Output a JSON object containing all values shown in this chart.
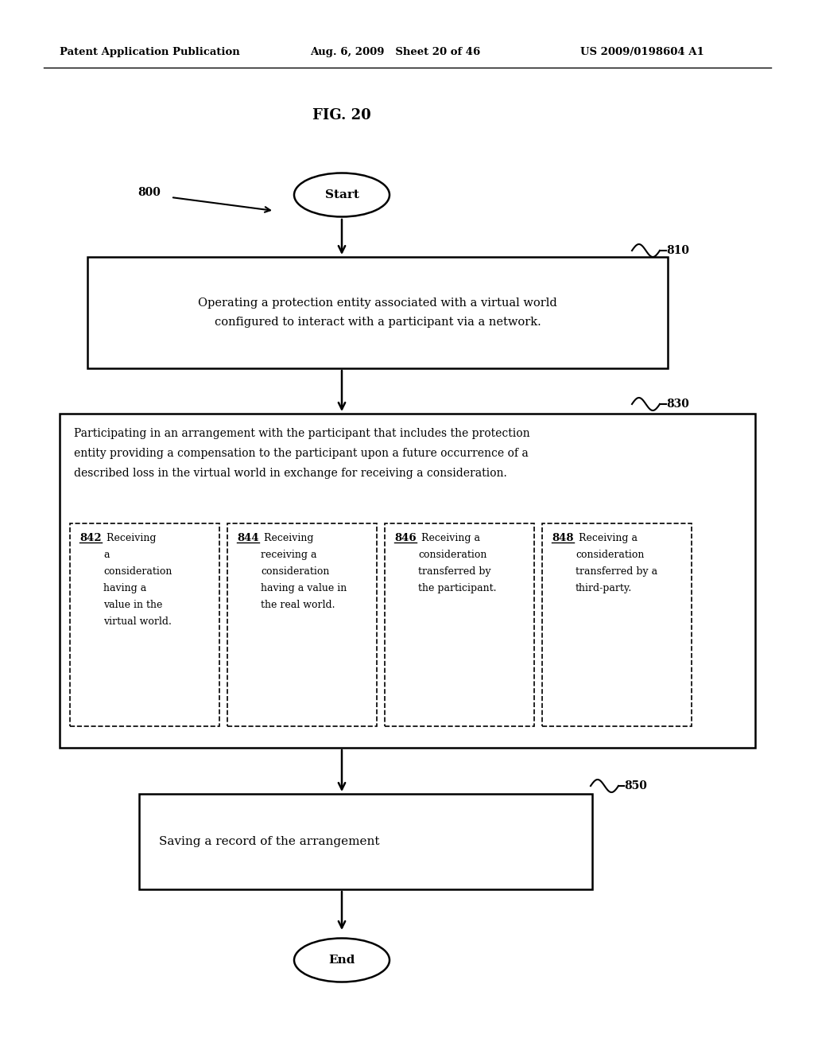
{
  "bg_color": "#ffffff",
  "header_left": "Patent Application Publication",
  "header_mid": "Aug. 6, 2009   Sheet 20 of 46",
  "header_right": "US 2009/0198604 A1",
  "fig_label": "FIG. 20",
  "label_800": "800",
  "label_810": "810",
  "label_830": "830",
  "label_850": "850",
  "start_text": "Start",
  "end_text": "End",
  "box810_text": "Operating a protection entity associated with a virtual world\nconfigured to interact with a participant via a network.",
  "box830_text": "Participating in an arrangement with the participant that includes the protection\nentity providing a compensation to the participant upon a future occurrence of a\ndescribed loss in the virtual world in exchange for receiving a consideration.",
  "box842_label": "842",
  "box842_text": " Receiving\na\nconsideration\nhaving a\nvalue in the\nvirtual world.",
  "box844_label": "844",
  "box844_text": " Receiving\nreceiving a\nconsideration\nhaving a value in\nthe real world.",
  "box846_label": "846",
  "box846_text": " Receiving a\nconsideration\ntransferred by\nthe participant.",
  "box848_label": "848",
  "box848_text": " Receiving a\nconsideration\ntransferred by a\nthird-party.",
  "box850_text": "Saving a record of the arrangement"
}
